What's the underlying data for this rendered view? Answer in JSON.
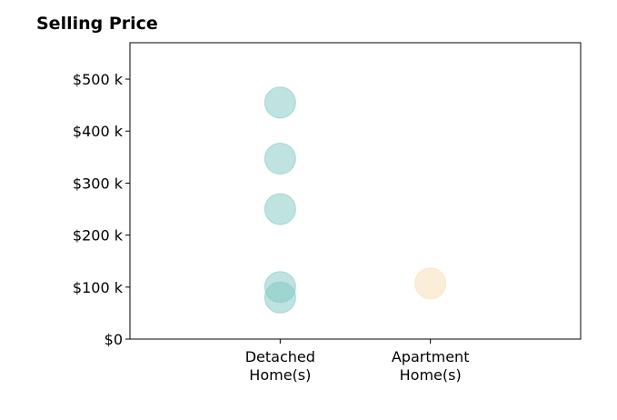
{
  "chart_data": {
    "type": "scatter",
    "title": "Selling Price",
    "categories": [
      "Detached\nHome(s)",
      "Apartment\nHome(s)"
    ],
    "yticks": [
      {
        "value": 0,
        "label": "$0"
      },
      {
        "value": 100000,
        "label": "$100 k"
      },
      {
        "value": 200000,
        "label": "$200 k"
      },
      {
        "value": 300000,
        "label": "$300 k"
      },
      {
        "value": 400000,
        "label": "$400 k"
      },
      {
        "value": 500000,
        "label": "$500 k"
      }
    ],
    "ylim": [
      0,
      570000
    ],
    "xlim": [
      -1,
      2
    ],
    "grid": false,
    "series": [
      {
        "category_index": 0,
        "color": "#7ec8c1",
        "values": [
          455000,
          347000,
          250000,
          100000,
          80000
        ]
      },
      {
        "category_index": 1,
        "color": "#f5deb3",
        "values": [
          107000
        ]
      }
    ]
  }
}
